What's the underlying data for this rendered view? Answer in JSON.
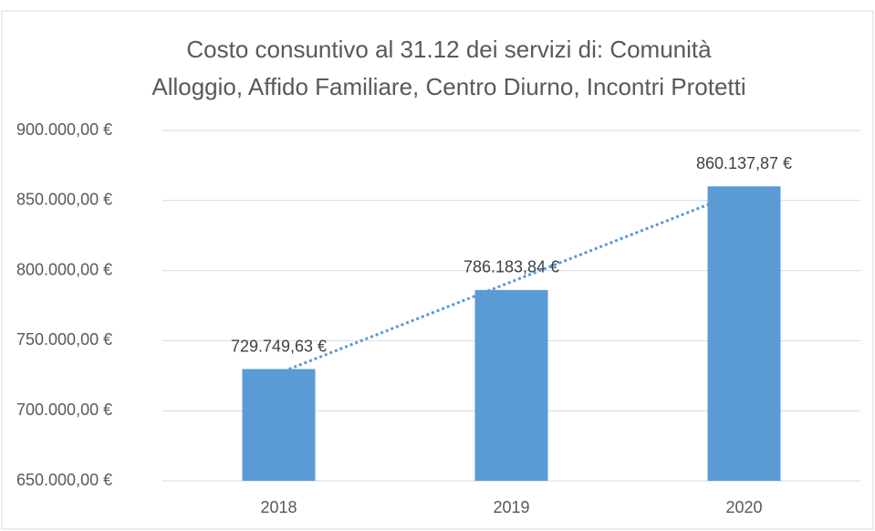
{
  "chart_data": {
    "type": "bar",
    "title": [
      "Costo consuntivo al 31.12 dei servizi di: Comunità",
      "Alloggio, Affido Familiare, Centro Diurno, Incontri Protetti"
    ],
    "categories": [
      "2018",
      "2019",
      "2020"
    ],
    "values": [
      729749.63,
      786183.84,
      860137.87
    ],
    "value_labels": [
      "729.749,63 €",
      "786.183,84 €",
      "860.137,87 €"
    ],
    "color": "#5b9bd5",
    "trendline": {
      "type": "linear",
      "color": "#5b9bd5"
    },
    "ylim": [
      650000,
      900000
    ],
    "yticks": [
      {
        "value": 650000,
        "label": "650.000,00 €"
      },
      {
        "value": 700000,
        "label": "700.000,00 €"
      },
      {
        "value": 750000,
        "label": "750.000,00 €"
      },
      {
        "value": 800000,
        "label": "800.000,00 €"
      },
      {
        "value": 850000,
        "label": "850.000,00 €"
      },
      {
        "value": 900000,
        "label": "900.000,00 €"
      }
    ],
    "grid": true
  }
}
